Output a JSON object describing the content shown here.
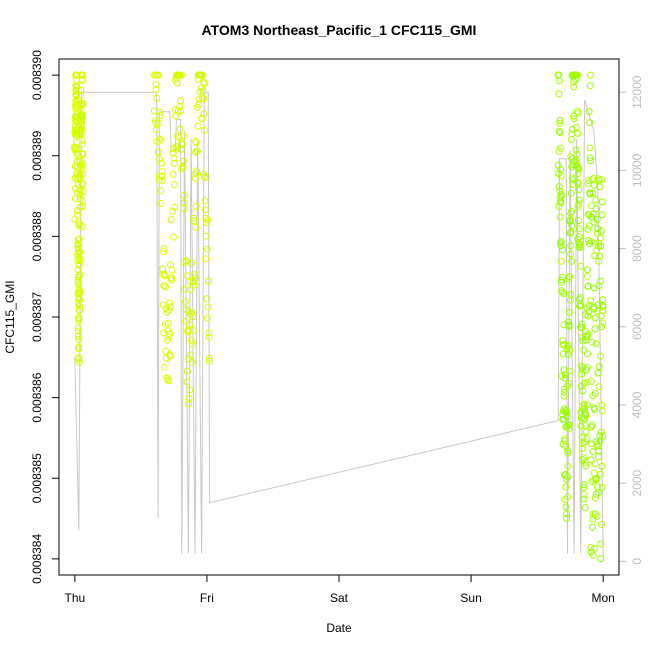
{
  "chart_data": {
    "type": "scatter",
    "title": "ATOM3 Northeast_Pacific_1 CFC115_GMI",
    "xlabel": "Date",
    "ylabel": "CFC115_GMI",
    "x_ticks": [
      "Thu",
      "Fri",
      "Sat",
      "Sun",
      "Mon"
    ],
    "x_tick_positions_days": [
      0,
      1,
      2,
      3,
      4
    ],
    "xlim_days": [
      -0.12,
      4.12
    ],
    "y_ticks": [
      "0.008384",
      "0.008385",
      "0.008386",
      "0.008387",
      "0.008388",
      "0.008389",
      "0.008390"
    ],
    "y_tick_values": [
      0.008384,
      0.008385,
      0.008386,
      0.008387,
      0.008388,
      0.008389,
      0.00839
    ],
    "ylim": [
      0.0083838,
      0.0083902
    ],
    "right_axis": {
      "ticks": [
        "0",
        "2000",
        "4000",
        "6000",
        "8000",
        "10000",
        "12000"
      ],
      "tick_values": [
        0,
        2000,
        4000,
        6000,
        8000,
        10000,
        12000
      ],
      "ylim": [
        -350,
        12850
      ]
    },
    "grid": false,
    "colors": {
      "scatter_gradient": [
        "#c8ff00",
        "#ecff00",
        "#99ff00",
        "#7cff00"
      ],
      "altitude_line": "#bebebe"
    },
    "series": [
      {
        "role": "scatter",
        "segments": [
          {
            "x_start": 0.0,
            "x_end": 0.06,
            "y_min": 0.0083861,
            "y_max": 0.00839
          },
          {
            "x_start": 0.6,
            "x_end": 1.02,
            "y_min": 0.0083855,
            "y_max": 0.00839
          },
          {
            "x_start": 3.66,
            "x_end": 4.0,
            "y_min": 0.008384,
            "y_max": 0.00839
          }
        ]
      },
      {
        "role": "altitude",
        "points": [
          {
            "x": 0.0,
            "y": 5200
          },
          {
            "x": 0.03,
            "y": 800
          },
          {
            "x": 0.05,
            "y": 12000
          },
          {
            "x": 0.62,
            "y": 12000
          },
          {
            "x": 0.63,
            "y": 1100
          },
          {
            "x": 0.64,
            "y": 11500
          },
          {
            "x": 0.72,
            "y": 11500
          },
          {
            "x": 0.73,
            "y": 10500
          },
          {
            "x": 0.76,
            "y": 10500
          },
          {
            "x": 0.77,
            "y": 11300
          },
          {
            "x": 0.8,
            "y": 11300
          },
          {
            "x": 0.81,
            "y": 200
          },
          {
            "x": 0.83,
            "y": 11000
          },
          {
            "x": 0.86,
            "y": 200
          },
          {
            "x": 0.88,
            "y": 10800
          },
          {
            "x": 0.91,
            "y": 200
          },
          {
            "x": 0.93,
            "y": 10800
          },
          {
            "x": 0.96,
            "y": 200
          },
          {
            "x": 0.98,
            "y": 12000
          },
          {
            "x": 1.01,
            "y": 12000
          },
          {
            "x": 1.02,
            "y": 1500
          },
          {
            "x": 3.66,
            "y": 3600
          },
          {
            "x": 3.67,
            "y": 10300
          },
          {
            "x": 3.72,
            "y": 10300
          },
          {
            "x": 3.73,
            "y": 200
          },
          {
            "x": 3.75,
            "y": 10500
          },
          {
            "x": 3.78,
            "y": 200
          },
          {
            "x": 3.8,
            "y": 10800
          },
          {
            "x": 3.83,
            "y": 200
          },
          {
            "x": 3.86,
            "y": 11800
          },
          {
            "x": 3.93,
            "y": 11000
          },
          {
            "x": 3.96,
            "y": 9500
          },
          {
            "x": 4.0,
            "y": 100
          }
        ]
      }
    ]
  }
}
